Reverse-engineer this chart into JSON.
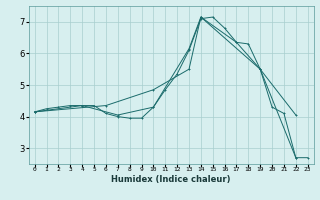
{
  "title": "",
  "xlabel": "Humidex (Indice chaleur)",
  "ylabel": "",
  "bg_color": "#d7efef",
  "grid_color": "#a8cfcf",
  "line_color": "#1a6b6b",
  "xlim": [
    -0.5,
    23.5
  ],
  "ylim": [
    2.5,
    7.5
  ],
  "yticks": [
    3,
    4,
    5,
    6,
    7
  ],
  "xticks": [
    0,
    1,
    2,
    3,
    4,
    5,
    6,
    7,
    8,
    9,
    10,
    11,
    12,
    13,
    14,
    15,
    16,
    17,
    18,
    19,
    20,
    21,
    22,
    23
  ],
  "series1_x": [
    0,
    1,
    2,
    3,
    4,
    5,
    6,
    7,
    8,
    9,
    10,
    11,
    12,
    13,
    14,
    15,
    16,
    17,
    18,
    19,
    20,
    21,
    22,
    23
  ],
  "series1_y": [
    4.15,
    4.25,
    4.3,
    4.35,
    4.35,
    4.35,
    4.1,
    4.0,
    3.95,
    3.95,
    4.3,
    4.85,
    5.35,
    6.1,
    7.1,
    7.15,
    6.8,
    6.35,
    6.3,
    5.5,
    4.3,
    4.1,
    2.7,
    2.7
  ],
  "series2_x": [
    0,
    4,
    7,
    10,
    13,
    14,
    17,
    19,
    22
  ],
  "series2_y": [
    4.15,
    4.35,
    4.05,
    4.3,
    6.15,
    7.15,
    6.35,
    5.5,
    2.7
  ],
  "series3_x": [
    0,
    6,
    10,
    13,
    14,
    19,
    22
  ],
  "series3_y": [
    4.15,
    4.35,
    4.85,
    5.5,
    7.15,
    5.5,
    4.05
  ]
}
